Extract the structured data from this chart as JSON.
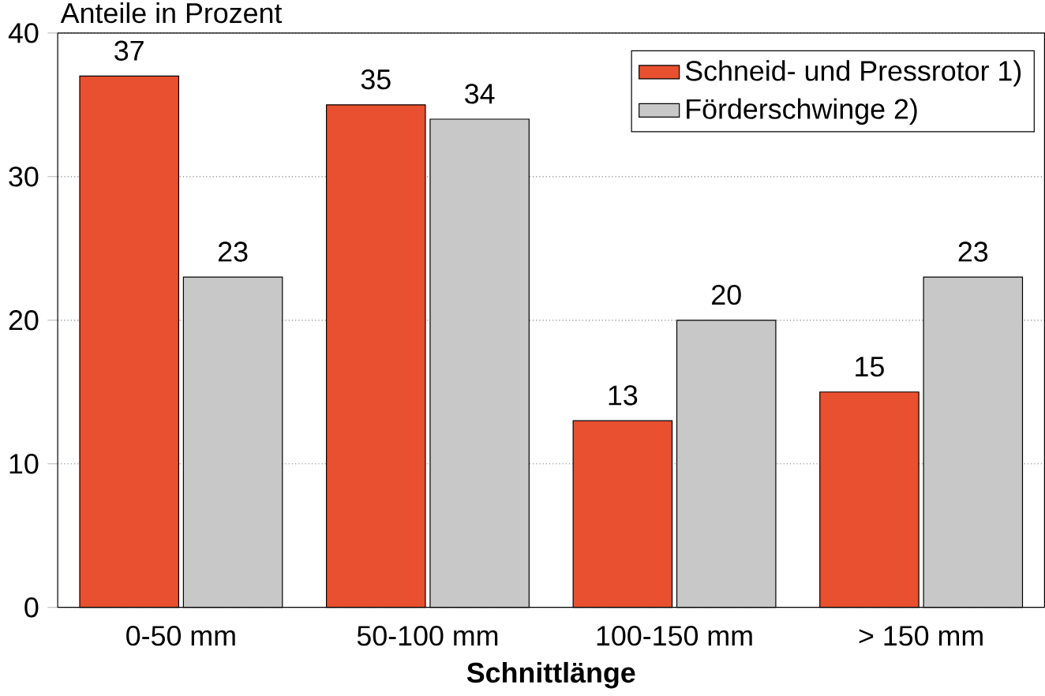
{
  "chart_data": {
    "type": "bar",
    "ylabel": "Anteile in Prozent",
    "xlabel": "Schnittlänge",
    "categories": [
      "0-50 mm",
      "50-100 mm",
      "100-150 mm",
      "> 150 mm"
    ],
    "series": [
      {
        "name": "Schneid- und Pressrotor 1)",
        "color": "#e8502f",
        "values": [
          37,
          35,
          13,
          15
        ]
      },
      {
        "name": "Förderschwinge 2)",
        "color": "#c8c8c8",
        "values": [
          23,
          34,
          20,
          23
        ]
      }
    ],
    "ylim": [
      0,
      40
    ],
    "yticks": [
      0,
      10,
      20,
      30,
      40
    ],
    "grid": "y",
    "legend": "top right",
    "data_labels": true
  }
}
